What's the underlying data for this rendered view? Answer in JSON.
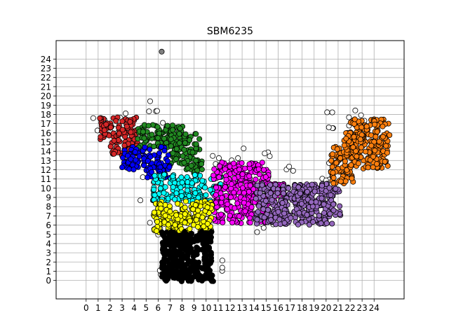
{
  "chart_data": {
    "type": "scatter",
    "title": "SBM6235",
    "xlabel": "",
    "ylabel": "",
    "xlim": [
      -2.5,
      26.5
    ],
    "ylim": [
      -2,
      26
    ],
    "xticks": [
      "0",
      "1",
      "2",
      "3",
      "4",
      "5",
      "6",
      "7",
      "8",
      "9",
      "10",
      "11",
      "12",
      "13",
      "14",
      "15",
      "16",
      "17",
      "18",
      "19",
      "20",
      "21",
      "22",
      "23",
      "24"
    ],
    "yticks": [
      "0",
      "1",
      "2",
      "3",
      "4",
      "5",
      "6",
      "7",
      "8",
      "9",
      "10",
      "11",
      "12",
      "13",
      "14",
      "15",
      "16",
      "17",
      "18",
      "19",
      "20",
      "21",
      "22",
      "23",
      "24"
    ],
    "grid": true,
    "legend": "none",
    "marker_edge_color": "#000000",
    "series": [
      {
        "color": "#ffffff",
        "regions": [
          [
            -0.2,
            16.0,
            1.3,
            17.6
          ],
          [
            5.0,
            16.5,
            6.5,
            19.5
          ],
          [
            1.5,
            14.8,
            3.5,
            18.3
          ],
          [
            4.5,
            8.5,
            6.0,
            11.5
          ],
          [
            5.0,
            4.5,
            6.5,
            6.5
          ],
          [
            10.0,
            12.0,
            11.5,
            14.0
          ],
          [
            10.0,
            6.0,
            12.5,
            7.0
          ],
          [
            11.5,
            13.0,
            15.5,
            14.5
          ],
          [
            14.0,
            4.8,
            17.5,
            6.8
          ],
          [
            15.5,
            11.5,
            17.5,
            12.5
          ],
          [
            19.5,
            10.0,
            21.0,
            12.8
          ],
          [
            20.0,
            15.8,
            23.5,
            19.2
          ],
          [
            6.0,
            0.0,
            8.0,
            2.0
          ],
          [
            10.0,
            1.0,
            11.5,
            2.5
          ]
        ],
        "density": 0.18
      },
      {
        "color": "#d62728",
        "regions": [
          [
            1.1,
            15.3,
            4.3,
            17.7
          ],
          [
            2.0,
            13.5,
            4.3,
            15.3
          ]
        ],
        "density": 1.6
      },
      {
        "color": "#228b22",
        "regions": [
          [
            4.3,
            14.4,
            8.2,
            16.9
          ],
          [
            7.0,
            12.5,
            9.5,
            15.9
          ],
          [
            8.0,
            11.5,
            9.7,
            13.0
          ]
        ],
        "density": 1.6
      },
      {
        "color": "#0000ff",
        "regions": [
          [
            3.0,
            12.0,
            7.0,
            14.5
          ],
          [
            5.0,
            11.0,
            7.0,
            12.5
          ]
        ],
        "density": 1.6
      },
      {
        "color": "#00ffff",
        "regions": [
          [
            5.6,
            8.6,
            11.3,
            11.5
          ]
        ],
        "density": 1.8
      },
      {
        "color": "#ff00ff",
        "regions": [
          [
            10.6,
            6.2,
            15.2,
            12.8
          ],
          [
            15.0,
            8.0,
            16.5,
            10.5
          ]
        ],
        "density": 1.8
      },
      {
        "color": "#9467bd",
        "regions": [
          [
            14.0,
            6.0,
            20.5,
            10.5
          ],
          [
            17.5,
            7.0,
            21.2,
            10.5
          ]
        ],
        "density": 1.6
      },
      {
        "color": "#ffff00",
        "regions": [
          [
            5.6,
            5.0,
            10.5,
            8.6
          ]
        ],
        "density": 1.8
      },
      {
        "color": "#000000",
        "regions": [
          [
            6.3,
            -0.1,
            10.6,
            5.3
          ]
        ],
        "density": 2.4
      },
      {
        "color": "#ff7f0e",
        "regions": [
          [
            20.3,
            10.5,
            22.3,
            14.5
          ],
          [
            22.0,
            12.0,
            25.3,
            17.5
          ],
          [
            21.5,
            14.0,
            23.0,
            16.0
          ]
        ],
        "density": 1.8
      },
      {
        "color": "#808080",
        "points": [
          [
            6.3,
            24.8
          ]
        ]
      }
    ]
  }
}
